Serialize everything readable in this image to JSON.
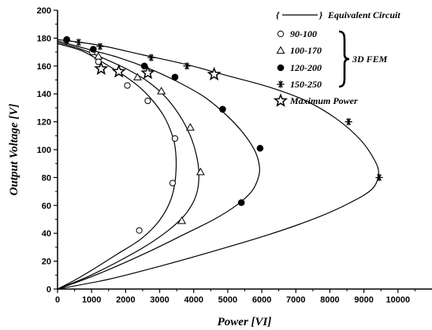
{
  "chart_data": {
    "type": "scatter",
    "title": "",
    "xlabel": "Power [VI]",
    "ylabel": "Output Voltage [V]",
    "xlim": [
      0,
      11000
    ],
    "ylim": [
      0,
      200
    ],
    "x_ticks": [
      "0",
      "1000",
      "2000",
      "3000",
      "4000",
      "5000",
      "6000",
      "7000",
      "8000",
      "9000",
      "10000"
    ],
    "y_ticks": [
      "0",
      "20",
      "40",
      "60",
      "80",
      "100",
      "120",
      "140",
      "160",
      "180",
      "200"
    ],
    "grid": false,
    "legend": {
      "position": "top-right",
      "entries": [
        {
          "label": "Equivalent Circuit",
          "marker": "line",
          "prefix": "{",
          "suffix": "}"
        },
        {
          "label": "90-100",
          "marker": "open-circle"
        },
        {
          "label": "100-170",
          "marker": "open-triangle"
        },
        {
          "label": "120-200",
          "marker": "filled-circle"
        },
        {
          "label": "150-250",
          "marker": "asterisk"
        },
        {
          "label": "Maximum Power",
          "marker": "open-star"
        }
      ],
      "group_label": "3D FEM"
    },
    "series": [
      {
        "name": "90-100",
        "marker": "open-circle",
        "points": [
          [
            1020,
            170
          ],
          [
            1200,
            163
          ],
          [
            2050,
            146
          ],
          [
            2650,
            135
          ],
          [
            3450,
            108
          ],
          [
            3380,
            76
          ],
          [
            2400,
            42
          ]
        ],
        "curve": [
          [
            0,
            176
          ],
          [
            700,
            171
          ],
          [
            1300,
            163
          ],
          [
            1900,
            154
          ],
          [
            2400,
            145
          ],
          [
            2800,
            135
          ],
          [
            3100,
            125
          ],
          [
            3300,
            115
          ],
          [
            3430,
            105
          ],
          [
            3480,
            95
          ],
          [
            3480,
            85
          ],
          [
            3440,
            75
          ],
          [
            3340,
            65
          ],
          [
            3150,
            55
          ],
          [
            2850,
            45
          ],
          [
            2400,
            35
          ],
          [
            1750,
            25
          ],
          [
            1100,
            15
          ],
          [
            550,
            7
          ],
          [
            0,
            0
          ]
        ]
      },
      {
        "name": "100-170",
        "marker": "open-triangle",
        "points": [
          [
            1200,
            167
          ],
          [
            2350,
            152
          ],
          [
            3050,
            142
          ],
          [
            3900,
            116
          ],
          [
            4200,
            84
          ],
          [
            3650,
            49
          ]
        ],
        "curve": [
          [
            0,
            177
          ],
          [
            700,
            172
          ],
          [
            1400,
            165
          ],
          [
            2100,
            157
          ],
          [
            2700,
            148
          ],
          [
            3200,
            137
          ],
          [
            3600,
            124
          ],
          [
            3900,
            110
          ],
          [
            4080,
            96
          ],
          [
            4150,
            84
          ],
          [
            4120,
            72
          ],
          [
            3980,
            62
          ],
          [
            3700,
            52
          ],
          [
            3250,
            42
          ],
          [
            2600,
            31
          ],
          [
            1800,
            20
          ],
          [
            900,
            9
          ],
          [
            0,
            0
          ]
        ]
      },
      {
        "name": "120-200",
        "marker": "filled-circle",
        "points": [
          [
            270,
            179
          ],
          [
            1050,
            172
          ],
          [
            2550,
            160
          ],
          [
            3450,
            152
          ],
          [
            4850,
            129
          ],
          [
            5950,
            101
          ],
          [
            5400,
            62
          ]
        ],
        "curve": [
          [
            0,
            178
          ],
          [
            900,
            172
          ],
          [
            1800,
            166
          ],
          [
            2700,
            158
          ],
          [
            3500,
            149
          ],
          [
            4300,
            138
          ],
          [
            4950,
            125
          ],
          [
            5450,
            112
          ],
          [
            5800,
            99
          ],
          [
            5930,
            88
          ],
          [
            5900,
            80
          ],
          [
            5700,
            70
          ],
          [
            5250,
            60
          ],
          [
            4600,
            50
          ],
          [
            3700,
            39
          ],
          [
            2700,
            27
          ],
          [
            1700,
            16
          ],
          [
            800,
            7
          ],
          [
            0,
            0
          ]
        ]
      },
      {
        "name": "150-250",
        "marker": "asterisk",
        "points": [
          [
            270,
            178
          ],
          [
            620,
            177
          ],
          [
            1250,
            174
          ],
          [
            2750,
            166
          ],
          [
            3800,
            160
          ],
          [
            8550,
            120
          ],
          [
            9450,
            80
          ]
        ],
        "curve": [
          [
            0,
            179
          ],
          [
            1200,
            175
          ],
          [
            2500,
            168
          ],
          [
            3800,
            161
          ],
          [
            5000,
            153
          ],
          [
            6200,
            145
          ],
          [
            7300,
            135
          ],
          [
            8200,
            122
          ],
          [
            8900,
            107
          ],
          [
            9300,
            93
          ],
          [
            9430,
            83
          ],
          [
            9250,
            72
          ],
          [
            8600,
            62
          ],
          [
            7600,
            51
          ],
          [
            6200,
            39
          ],
          [
            4700,
            28
          ],
          [
            3100,
            17
          ],
          [
            1500,
            7
          ],
          [
            0,
            0
          ]
        ]
      },
      {
        "name": "Maximum Power",
        "marker": "open-star",
        "points": [
          [
            1280,
            158
          ],
          [
            1800,
            156
          ],
          [
            2650,
            155
          ],
          [
            4600,
            154
          ]
        ]
      }
    ]
  }
}
